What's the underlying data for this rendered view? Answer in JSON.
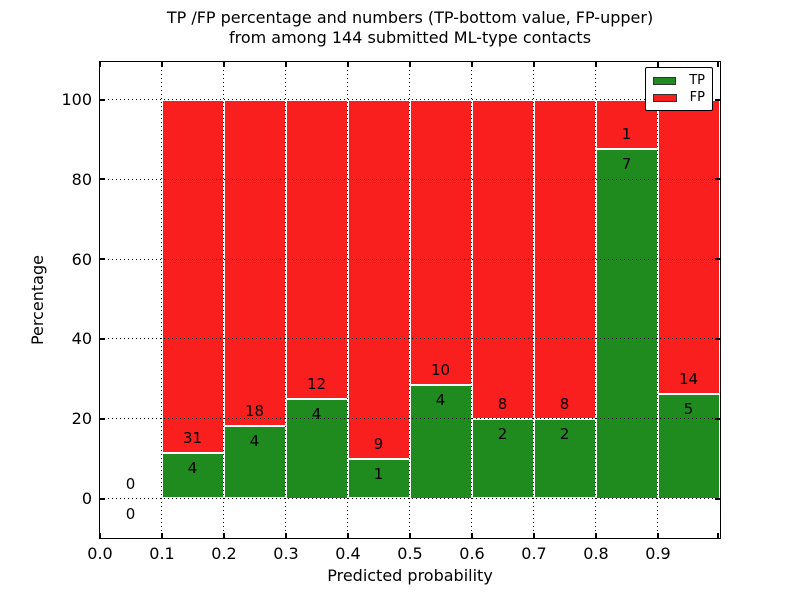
{
  "figure": {
    "title_line1": "TP /FP percentage and numbers (TP-bottom value, FP-upper)",
    "title_line2": "from among 144 submitted ML-type contacts",
    "xlabel": "Predicted probability",
    "ylabel": "Percentage"
  },
  "legend": {
    "items": [
      {
        "label": "TP",
        "color": "#1f8b1f"
      },
      {
        "label": "FP",
        "color": "#fa1f1f"
      }
    ]
  },
  "chart_data": {
    "type": "bar",
    "variant": "stacked-percentage",
    "title": "TP /FP percentage and numbers (TP-bottom value, FP-upper) from among 144 submitted ML-type contacts",
    "xlabel": "Predicted probability",
    "ylabel": "Percentage",
    "total_contacts": 144,
    "xlim": [
      0.0,
      1.0
    ],
    "bin_width": 0.1,
    "bin_starts": [
      0.0,
      0.1,
      0.2,
      0.3,
      0.4,
      0.5,
      0.6,
      0.7,
      0.8,
      0.9
    ],
    "series": [
      {
        "name": "TP",
        "color": "#1f8b1f",
        "counts": [
          0,
          4,
          4,
          4,
          1,
          4,
          2,
          2,
          7,
          5
        ]
      },
      {
        "name": "FP",
        "color": "#fa1f1f",
        "counts": [
          0,
          31,
          18,
          12,
          9,
          10,
          8,
          8,
          1,
          14
        ]
      }
    ],
    "tp_percent_heights": [
      0,
      11.43,
      18.18,
      25.0,
      10.0,
      28.57,
      20.0,
      20.0,
      87.5,
      26.32
    ],
    "y_ticks": [
      0,
      20,
      40,
      60,
      80,
      100
    ],
    "x_tick_labels": [
      "0.0",
      "0.1",
      "0.2",
      "0.3",
      "0.4",
      "0.5",
      "0.6",
      "0.7",
      "0.8",
      "0.9"
    ],
    "y_tick_labels": [
      "0",
      "20",
      "40",
      "60",
      "80",
      "100"
    ],
    "grid": true,
    "grid_style": "dotted",
    "legend_position": "upper-right",
    "annotation_note": "FP count printed above TP-bar top, TP count printed below it"
  }
}
